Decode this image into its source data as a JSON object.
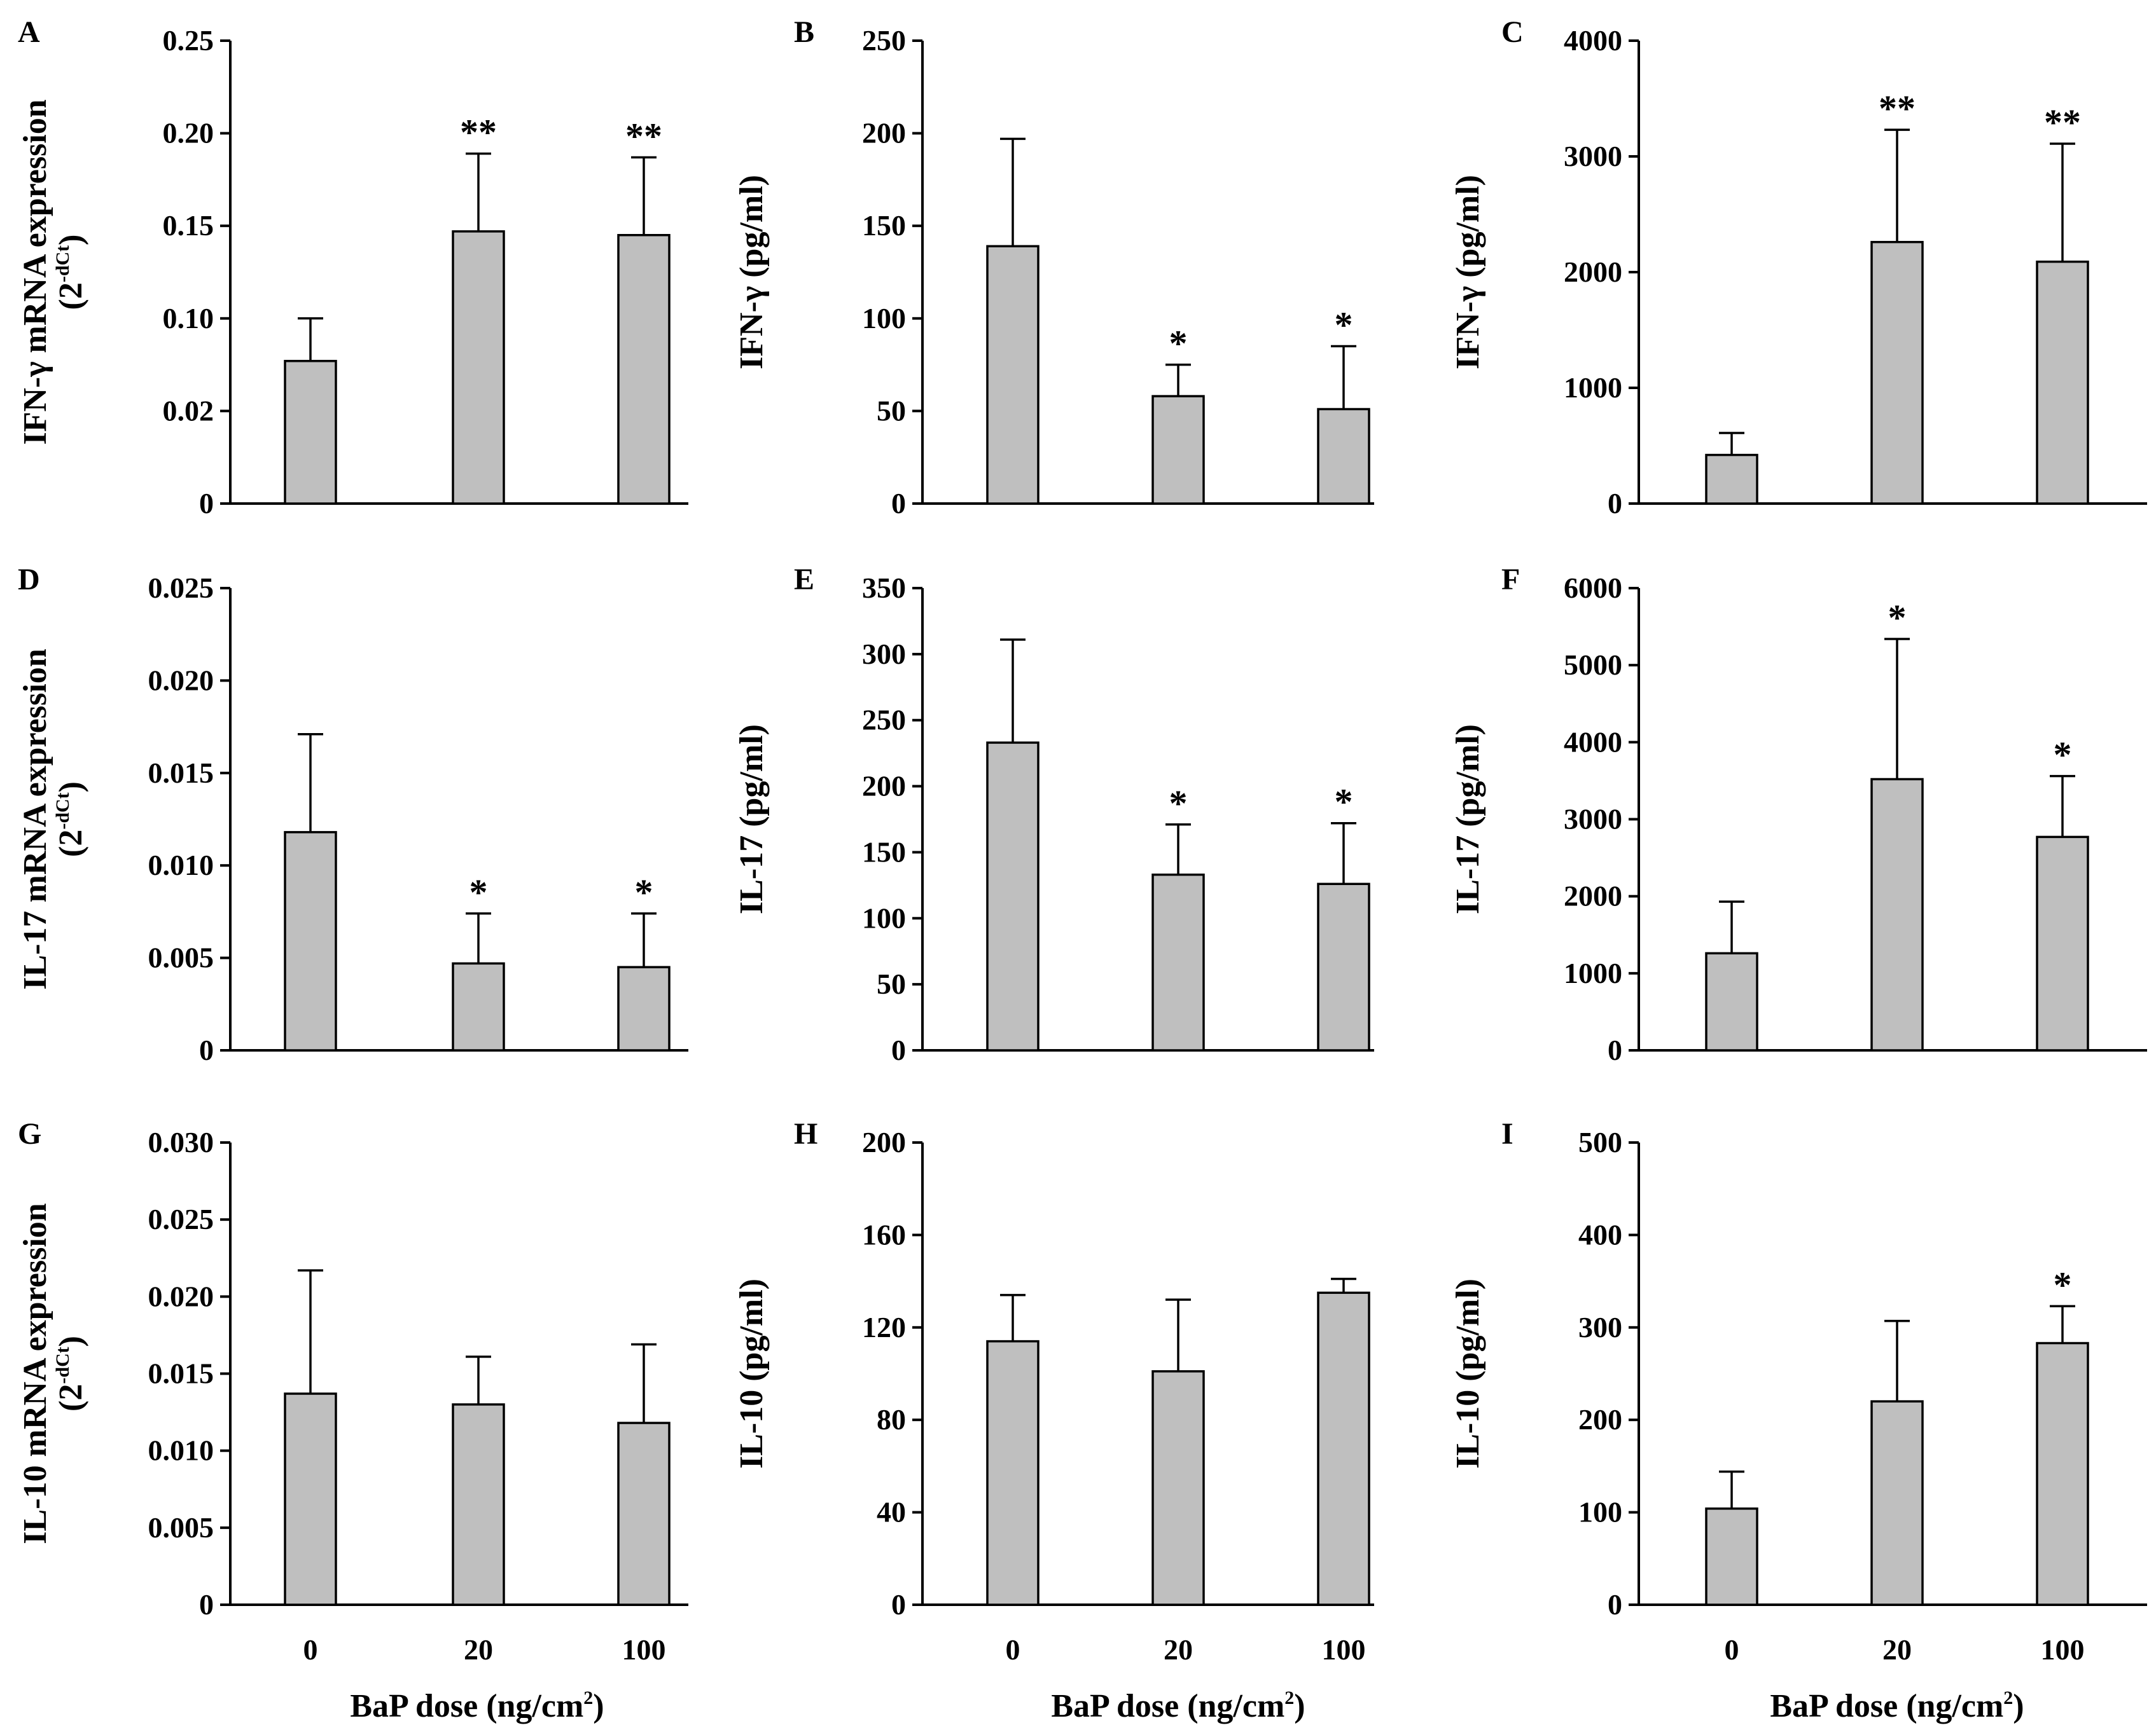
{
  "figure": {
    "xlabel_main": "BaP dose (ng/cm",
    "xlabel_sup": "2",
    "xlabel_end": ")"
  },
  "chart_data": [
    {
      "panel": "A",
      "type": "bar",
      "ylabel_main": "IFN-γ mRNA expression",
      "ylabel_sub": "(2",
      "ylabel_sup": "-dCt",
      "ylabel_sub_end": ")",
      "categories": [
        "0",
        "20",
        "100"
      ],
      "yticks": [
        "0",
        "0.02",
        "0.10",
        "0.15",
        "0.20",
        "0.25"
      ],
      "ylim": [
        0,
        0.25
      ],
      "values": [
        0.077,
        0.147,
        0.145
      ],
      "errors": [
        0.023,
        0.042,
        0.042
      ],
      "significance": [
        "",
        "**",
        "**"
      ]
    },
    {
      "panel": "B",
      "type": "bar",
      "ylabel_main": "IFN-γ (pg/ml)",
      "categories": [
        "0",
        "20",
        "100"
      ],
      "yticks": [
        "0",
        "50",
        "100",
        "150",
        "200",
        "250"
      ],
      "ylim": [
        0,
        250
      ],
      "values": [
        139,
        58,
        51
      ],
      "errors": [
        58,
        17,
        34
      ],
      "significance": [
        "",
        "*",
        "*"
      ]
    },
    {
      "panel": "C",
      "type": "bar",
      "ylabel_main": "IFN-γ (pg/ml)",
      "categories": [
        "0",
        "20",
        "100"
      ],
      "yticks": [
        "0",
        "1000",
        "2000",
        "3000",
        "4000"
      ],
      "ylim": [
        0,
        4000
      ],
      "values": [
        420,
        2260,
        2090
      ],
      "errors": [
        190,
        970,
        1020
      ],
      "significance": [
        "",
        "**",
        "**"
      ]
    },
    {
      "panel": "D",
      "type": "bar",
      "ylabel_main": "IL-17 mRNA expression",
      "ylabel_sub": "(2",
      "ylabel_sup": "-dCt",
      "ylabel_sub_end": ")",
      "categories": [
        "0",
        "20",
        "100"
      ],
      "yticks": [
        "0",
        "0.005",
        "0.010",
        "0.015",
        "0.020",
        "0.025"
      ],
      "ylim": [
        0,
        0.025
      ],
      "values": [
        0.0118,
        0.0047,
        0.0045
      ],
      "errors": [
        0.0053,
        0.0027,
        0.0029
      ],
      "significance": [
        "",
        "*",
        "*"
      ]
    },
    {
      "panel": "E",
      "type": "bar",
      "ylabel_main": "IL-17 (pg/ml)",
      "categories": [
        "0",
        "20",
        "100"
      ],
      "yticks": [
        "0",
        "50",
        "100",
        "150",
        "200",
        "250",
        "300",
        "350"
      ],
      "ylim": [
        0,
        350
      ],
      "values": [
        233,
        133,
        126
      ],
      "errors": [
        78,
        38,
        46
      ],
      "significance": [
        "",
        "*",
        "*"
      ]
    },
    {
      "panel": "F",
      "type": "bar",
      "ylabel_main": "IL-17 (pg/ml)",
      "categories": [
        "0",
        "20",
        "100"
      ],
      "yticks": [
        "0",
        "1000",
        "2000",
        "3000",
        "4000",
        "5000",
        "6000"
      ],
      "ylim": [
        0,
        6000
      ],
      "values": [
        1260,
        3520,
        2770
      ],
      "errors": [
        670,
        1820,
        790
      ],
      "significance": [
        "",
        "*",
        "*"
      ]
    },
    {
      "panel": "G",
      "type": "bar",
      "ylabel_main": "IL-10 mRNA expression",
      "ylabel_sub": "(2",
      "ylabel_sup": "-dCt",
      "ylabel_sub_end": ")",
      "categories": [
        "0",
        "20",
        "100"
      ],
      "yticks": [
        "0",
        "0.005",
        "0.010",
        "0.015",
        "0.020",
        "0.025",
        "0.030"
      ],
      "ylim": [
        0,
        0.03
      ],
      "values": [
        0.0137,
        0.013,
        0.0118
      ],
      "errors": [
        0.008,
        0.0031,
        0.0051
      ],
      "significance": [
        "",
        "",
        ""
      ]
    },
    {
      "panel": "H",
      "type": "bar",
      "ylabel_main": "IL-10 (pg/ml)",
      "categories": [
        "0",
        "20",
        "100"
      ],
      "yticks": [
        "0",
        "40",
        "80",
        "120",
        "160",
        "200"
      ],
      "ylim": [
        0,
        200
      ],
      "values": [
        114,
        101,
        135
      ],
      "errors": [
        20,
        31,
        6
      ],
      "significance": [
        "",
        "",
        ""
      ]
    },
    {
      "panel": "I",
      "type": "bar",
      "ylabel_main": "IL-10 (pg/ml)",
      "categories": [
        "0",
        "20",
        "100"
      ],
      "yticks": [
        "0",
        "100",
        "200",
        "300",
        "400",
        "500"
      ],
      "ylim": [
        0,
        500
      ],
      "values": [
        104,
        220,
        283
      ],
      "errors": [
        40,
        87,
        40
      ],
      "significance": [
        "",
        "",
        "*"
      ]
    }
  ]
}
